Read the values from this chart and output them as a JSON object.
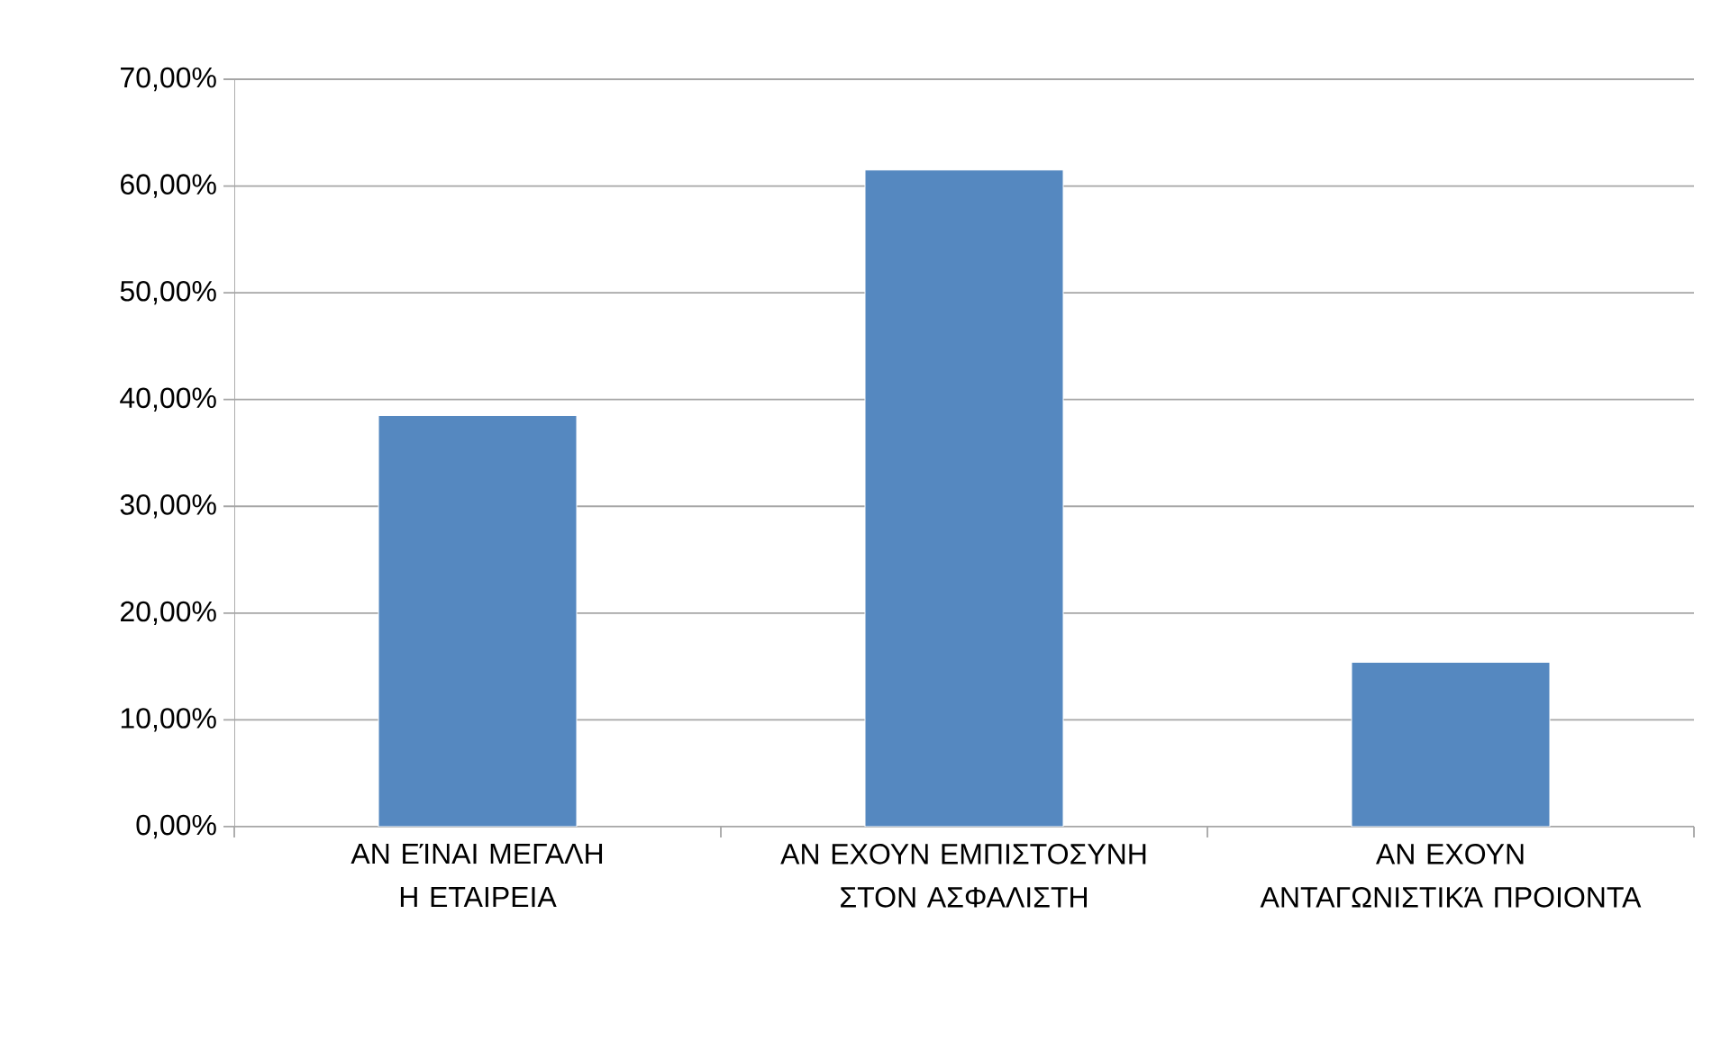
{
  "chart_data": {
    "type": "bar",
    "categories": [
      "ΑΝ ΕΊΝΑΙ ΜΕΓΑΛΗ Η ΕΤΑΙΡΕΙΑ",
      "ΑΝ ΕΧΟΥΝ ΕΜΠΙΣΤΟΣΥΝΗ ΣΤΟΝ ΑΣΦΑΛΙΣΤΗ",
      "ΑΝ ΕΧΟΥΝ ΑΝΤΑΓΩΝΙΣΤΙΚΆ ΠΡΟΙΟΝΤΑ"
    ],
    "values": [
      38.5,
      61.5,
      15.4
    ],
    "color": "#5588c0",
    "ylim": [
      0,
      70
    ],
    "yticks": [
      {
        "value": 0,
        "label": "0,00%"
      },
      {
        "value": 10,
        "label": "10,00%"
      },
      {
        "value": 20,
        "label": "20,00%"
      },
      {
        "value": 30,
        "label": "30,00%"
      },
      {
        "value": 40,
        "label": "40,00%"
      },
      {
        "value": 50,
        "label": "50,00%"
      },
      {
        "value": 60,
        "label": "60,00%"
      },
      {
        "value": 70,
        "label": "70,00%"
      }
    ],
    "grid": "y"
  }
}
